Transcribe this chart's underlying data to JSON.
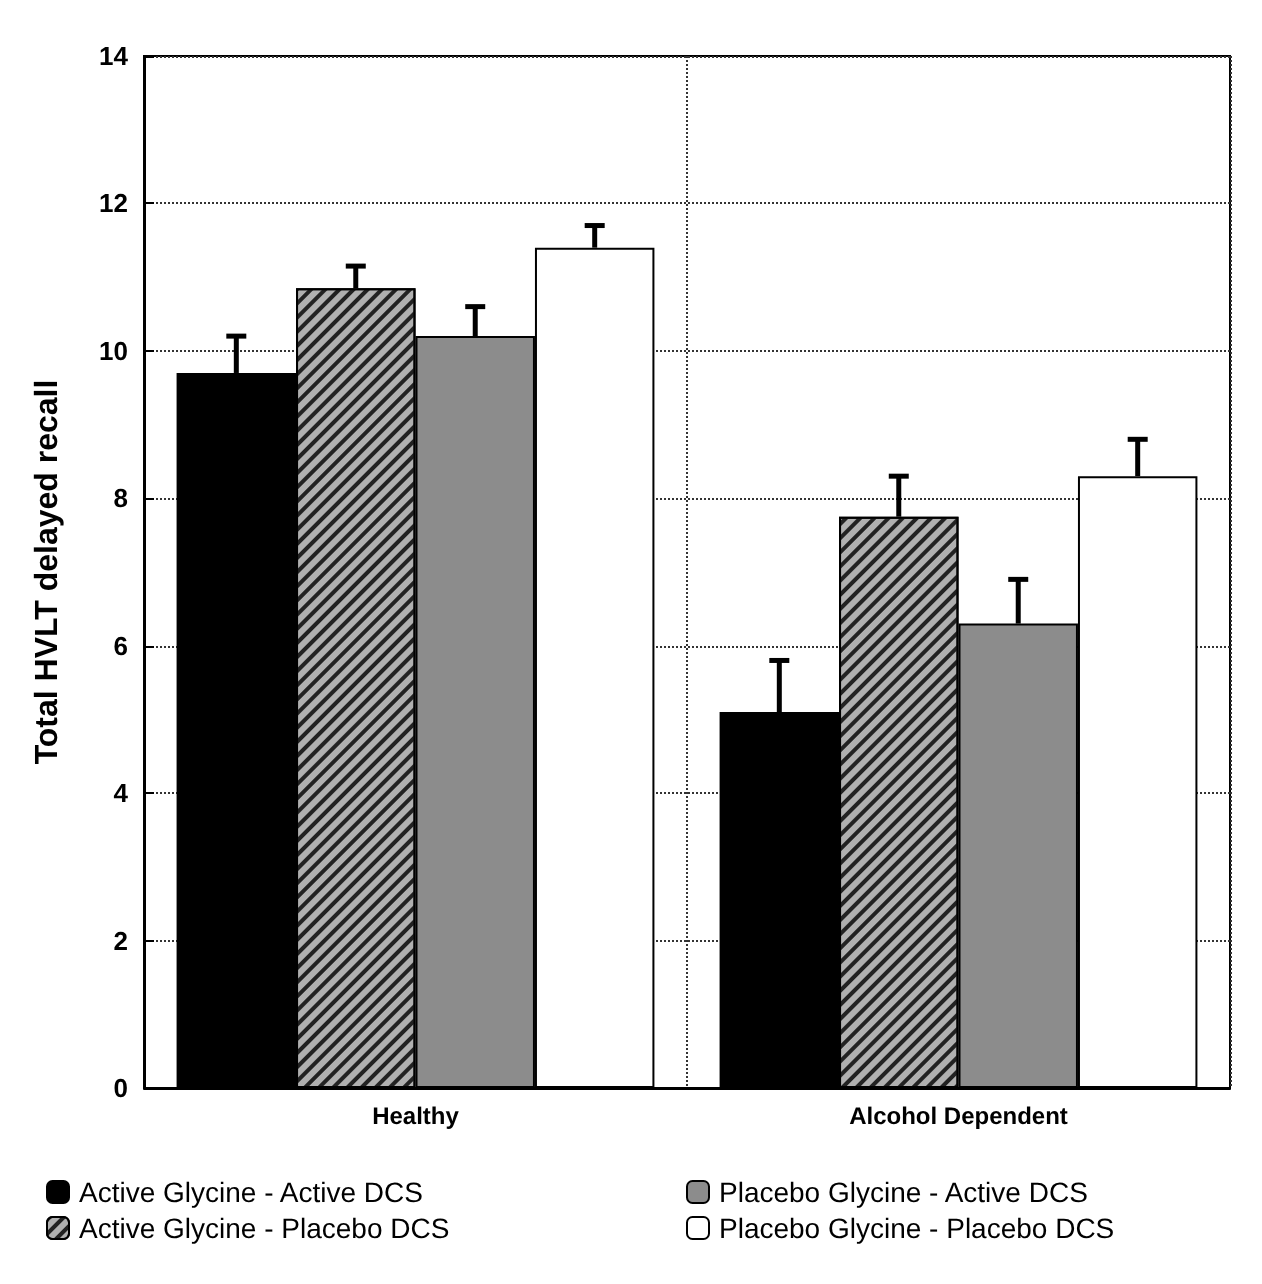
{
  "chart_data": {
    "type": "bar",
    "ylabel": "Total HVLT delayed recall",
    "categories": [
      "Healthy",
      "Alcohol Dependent"
    ],
    "series": [
      {
        "name": "Active Glycine - Active DCS",
        "color": "#000000",
        "values": [
          9.7,
          5.1
        ],
        "errors": [
          0.5,
          0.7
        ]
      },
      {
        "name": "Active Glycine - Placebo DCS",
        "color": "#b0b0b0",
        "values": [
          10.85,
          7.75
        ],
        "errors": [
          0.3,
          0.55
        ]
      },
      {
        "name": "Placebo Glycine - Active DCS",
        "color": "#8c8c8c",
        "values": [
          10.2,
          6.3
        ],
        "errors": [
          0.4,
          0.6
        ]
      },
      {
        "name": "Placebo Glycine - Placebo DCS",
        "color": "#ffffff",
        "values": [
          11.4,
          8.3
        ],
        "errors": [
          0.3,
          0.5
        ]
      }
    ],
    "ylim": [
      0,
      14
    ],
    "yticks": [
      0,
      2,
      4,
      6,
      8,
      10,
      12,
      14
    ],
    "grid": true,
    "legend": "bottom"
  }
}
